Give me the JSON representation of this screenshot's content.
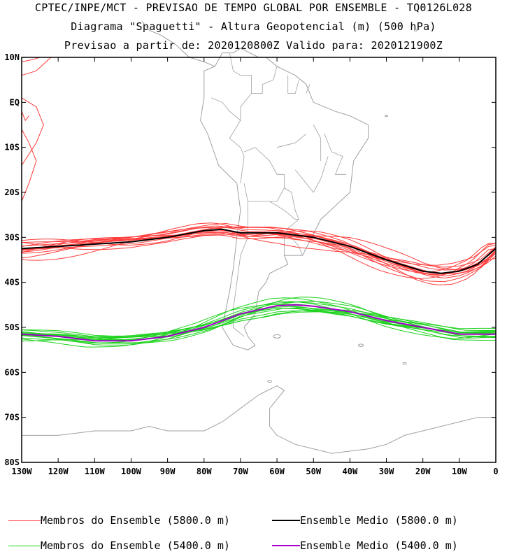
{
  "title": {
    "line1": "CPTEC/INPE/MCT - PREVISAO DE TEMPO GLOBAL POR ENSEMBLE - TQ0126L028",
    "line2": "Diagrama \"Spaguetti\" - Altura Geopotencial (m) (500 hPa)",
    "line3": "Previsao a partir de: 2020120800Z  Valido para: 2020121900Z"
  },
  "map": {
    "lon_range": [
      -130,
      0
    ],
    "lat_range": [
      -80,
      10
    ],
    "lat_ticks": [
      {
        "lat": 10,
        "label": "10N"
      },
      {
        "lat": 0,
        "label": "EQ"
      },
      {
        "lat": -10,
        "label": "10S"
      },
      {
        "lat": -20,
        "label": "20S"
      },
      {
        "lat": -30,
        "label": "30S"
      },
      {
        "lat": -40,
        "label": "40S"
      },
      {
        "lat": -50,
        "label": "50S"
      },
      {
        "lat": -60,
        "label": "60S"
      },
      {
        "lat": -70,
        "label": "70S"
      },
      {
        "lat": -80,
        "label": "80S"
      }
    ],
    "lon_ticks": [
      {
        "lon": -130,
        "label": "130W"
      },
      {
        "lon": -120,
        "label": "120W"
      },
      {
        "lon": -110,
        "label": "110W"
      },
      {
        "lon": -100,
        "label": "100W"
      },
      {
        "lon": -90,
        "label": "90W"
      },
      {
        "lon": -80,
        "label": "80W"
      },
      {
        "lon": -70,
        "label": "70W"
      },
      {
        "lon": -60,
        "label": "60W"
      },
      {
        "lon": -50,
        "label": "50W"
      },
      {
        "lon": -40,
        "label": "40W"
      },
      {
        "lon": -30,
        "label": "30W"
      },
      {
        "lon": -20,
        "label": "20W"
      },
      {
        "lon": -10,
        "label": "10W"
      },
      {
        "lon": 0,
        "label": "0"
      }
    ],
    "colors": {
      "members_5800": "#ff3c3c",
      "mean_5800": "#000000",
      "members_5400": "#1ed21e",
      "mean_5400": "#a000c8",
      "coastline": "#a0a0a0"
    }
  },
  "chart_data": {
    "type": "line",
    "xlabel": "",
    "ylabel": "",
    "xlim": [
      -130,
      0
    ],
    "ylim": [
      -80,
      10
    ],
    "series": [
      {
        "name": "Ensemble Medio (5800.0 m)",
        "lon": [
          -130,
          -120,
          -110,
          -100,
          -90,
          -80,
          -75,
          -70,
          -65,
          -60,
          -50,
          -40,
          -30,
          -20,
          -15,
          -10,
          -5,
          0
        ],
        "lat": [
          -32.5,
          -32,
          -31.5,
          -31,
          -30,
          -28.5,
          -28.2,
          -29,
          -29,
          -29,
          -30,
          -32,
          -35,
          -37.5,
          -38,
          -37.5,
          -36,
          -32.5
        ]
      },
      {
        "name": "Ensemble Medio (5400.0 m)",
        "lon": [
          -130,
          -120,
          -110,
          -100,
          -90,
          -80,
          -70,
          -60,
          -55,
          -50,
          -40,
          -30,
          -20,
          -10,
          0
        ],
        "lat": [
          -51.5,
          -52,
          -53,
          -53,
          -52,
          -50,
          -47,
          -45.2,
          -45,
          -45.3,
          -46.5,
          -48.5,
          -50,
          -51.5,
          -51.5
        ]
      }
    ]
  },
  "legend": {
    "members_5800": "Membros do Ensemble (5800.0 m)",
    "mean_5800": "Ensemble Medio (5800.0 m)",
    "members_5400": "Membros do Ensemble (5400.0 m)",
    "mean_5400": "Ensemble Medio (5400.0 m)"
  }
}
